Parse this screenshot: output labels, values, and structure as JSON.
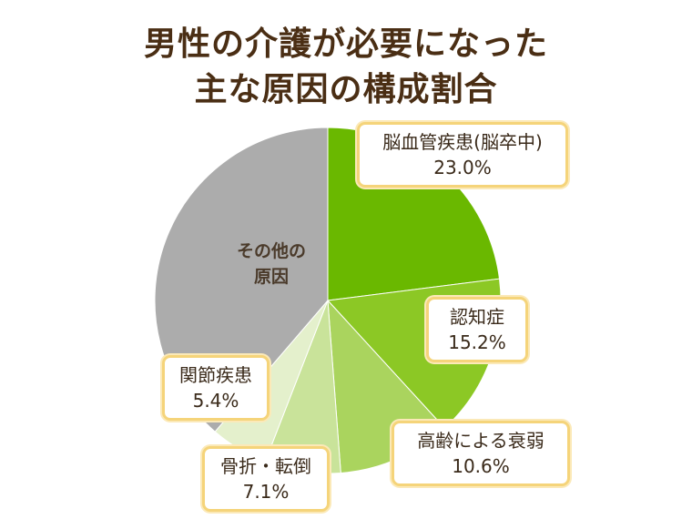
{
  "title": {
    "line1": "男性の介護が必要になった",
    "line2": "主な原因の構成割合"
  },
  "chart_data": {
    "type": "pie",
    "title": "男性の介護が必要になった主な原因の構成割合",
    "start_angle_deg": 0,
    "direction": "clockwise",
    "slices": [
      {
        "name": "脳血管疾患(脳卒中)",
        "value": 23.0,
        "label": "23.0%",
        "color": "#6ab800"
      },
      {
        "name": "認知症",
        "value": 15.2,
        "label": "15.2%",
        "color": "#8cc825"
      },
      {
        "name": "高齢による衰弱",
        "value": 10.6,
        "label": "10.6%",
        "color": "#aad45e"
      },
      {
        "name": "骨折・転倒",
        "value": 7.1,
        "label": "7.1%",
        "color": "#c9e39a"
      },
      {
        "name": "関節疾患",
        "value": 5.4,
        "label": "5.4%",
        "color": "#e4f0cc"
      },
      {
        "name": "その他の原因",
        "value": 38.7,
        "label": "",
        "color": "#acacac"
      }
    ],
    "other_label_lines": [
      "その他の",
      "原因"
    ]
  }
}
